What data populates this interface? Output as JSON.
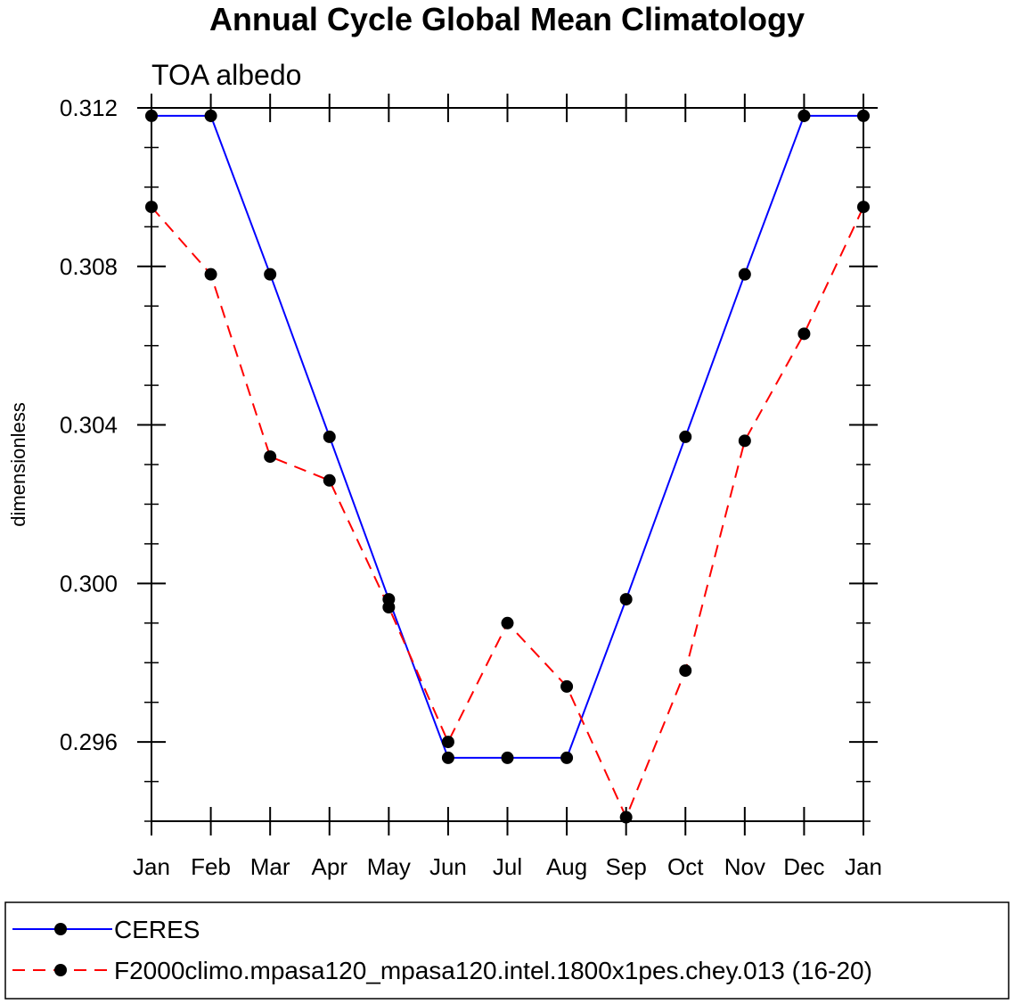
{
  "chart_data": {
    "type": "line",
    "title": "Annual Cycle Global Mean Climatology",
    "subtitle": "TOA albedo",
    "xlabel": "",
    "ylabel": "dimensionless",
    "categories": [
      "Jan",
      "Feb",
      "Mar",
      "Apr",
      "May",
      "Jun",
      "Jul",
      "Aug",
      "Sep",
      "Oct",
      "Nov",
      "Dec",
      "Jan"
    ],
    "ylim": [
      0.294,
      0.312
    ],
    "yticks": [
      0.296,
      0.3,
      0.304,
      0.308,
      0.312
    ],
    "ytick_labels": [
      "0.296",
      "0.300",
      "0.304",
      "0.308",
      "0.312"
    ],
    "grid": false,
    "legend_position": "bottom",
    "series": [
      {
        "name": "CERES",
        "color": "#0000ff",
        "dash": "solid",
        "values": [
          0.3118,
          0.3118,
          0.3078,
          0.3037,
          0.2996,
          0.2956,
          0.2956,
          0.2956,
          0.2996,
          0.3037,
          0.3078,
          0.3118,
          0.3118
        ]
      },
      {
        "name": "F2000climo.mpasa120_mpasa120.intel.1800x1pes.chey.013 (16-20)",
        "color": "#ff0000",
        "dash": "dashed",
        "values": [
          0.3095,
          0.3078,
          0.3032,
          0.3026,
          0.2994,
          0.296,
          0.299,
          0.2974,
          0.2941,
          0.2978,
          0.3036,
          0.3063,
          0.3095
        ]
      }
    ]
  }
}
